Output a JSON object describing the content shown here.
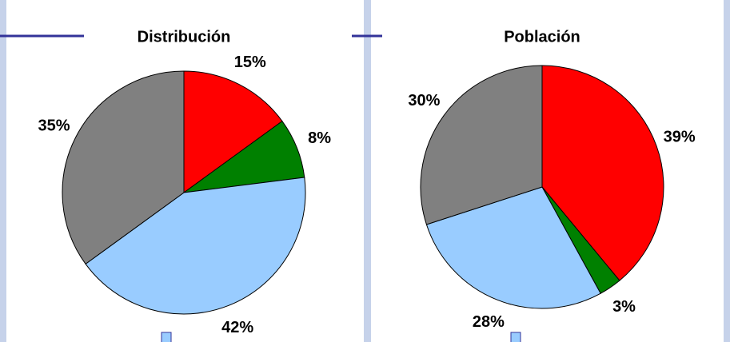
{
  "chart_data": [
    {
      "type": "pie",
      "title": "Distribución",
      "values": [
        15,
        8,
        42,
        35
      ],
      "value_labels": [
        "15%",
        "8%",
        "42%",
        "35%"
      ],
      "colors": [
        "#ff0000",
        "#008000",
        "#99ccff",
        "#808080"
      ]
    },
    {
      "type": "pie",
      "title": "Población",
      "values": [
        39,
        3,
        28,
        30
      ],
      "value_labels": [
        "39%",
        "3%",
        "28%",
        "30%"
      ],
      "colors": [
        "#ff0000",
        "#008000",
        "#99ccff",
        "#808080"
      ]
    }
  ]
}
